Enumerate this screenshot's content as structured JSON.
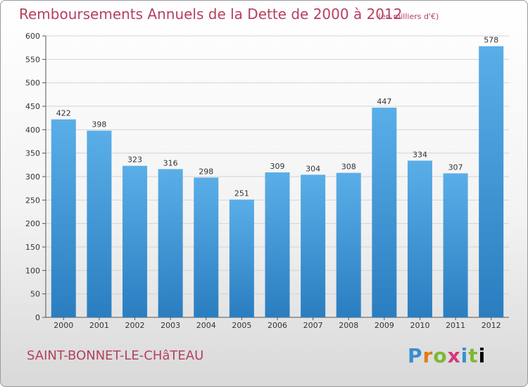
{
  "header": {
    "title": "Remboursements Annuels de la Dette de 2000 à 2012",
    "subtitle": "(en milliers d'€)"
  },
  "footer": {
    "commune": "SAINT-BONNET-LE-CHâTEAU",
    "logo_text": "Proxiti"
  },
  "colors": {
    "title": "#b5405f",
    "bar_top": "#5aaee8",
    "bar_bottom": "#2a7ec0"
  },
  "chart_data": {
    "type": "bar",
    "title": "Remboursements Annuels de la Dette de 2000 à 2012",
    "subtitle": "(en milliers d'€)",
    "categories": [
      "2000",
      "2001",
      "2002",
      "2003",
      "2004",
      "2005",
      "2006",
      "2007",
      "2008",
      "2009",
      "2010",
      "2011",
      "2012"
    ],
    "values": [
      422,
      398,
      323,
      316,
      298,
      251,
      309,
      304,
      308,
      447,
      334,
      307,
      578
    ],
    "ylim": [
      0,
      600
    ],
    "yticks": [
      0,
      50,
      100,
      150,
      200,
      250,
      300,
      350,
      400,
      450,
      500,
      550,
      600
    ],
    "grid": true
  }
}
